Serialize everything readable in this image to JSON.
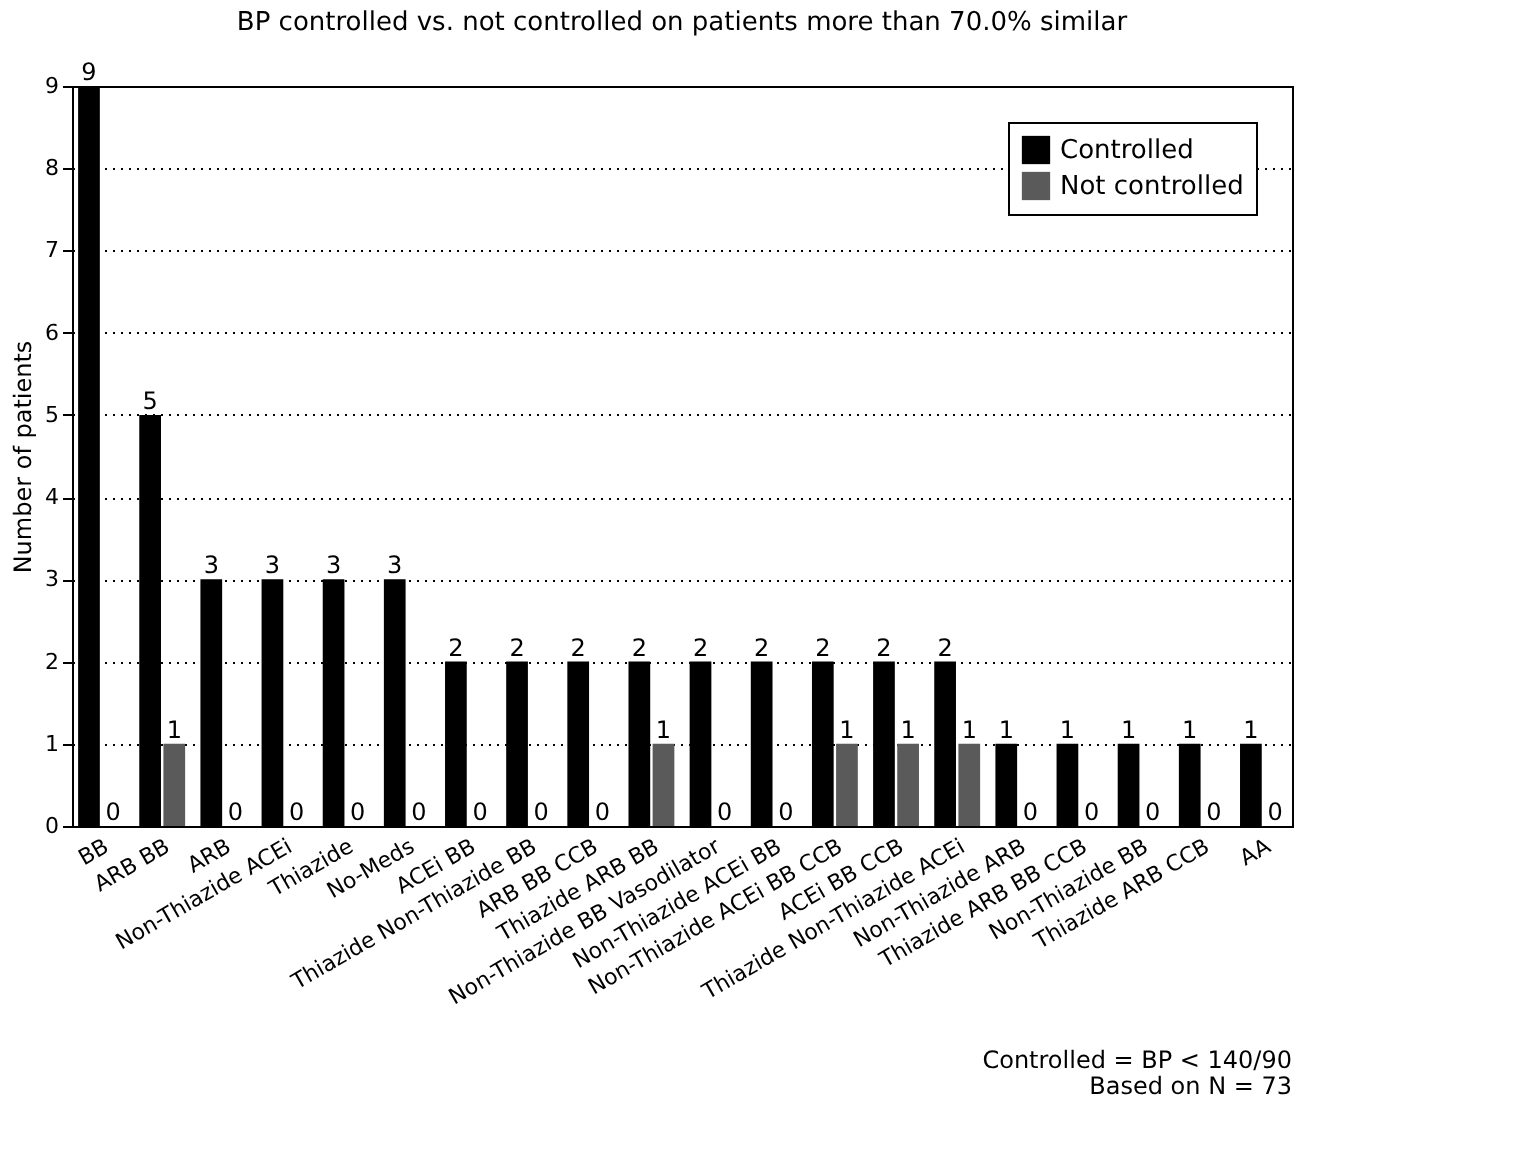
{
  "chart_data": {
    "type": "bar",
    "title": "BP controlled vs. not controlled on patients more than 70.0% similar",
    "ylabel": "Number of patients",
    "categories": [
      "BB",
      "ARB BB",
      "ARB",
      "Non-Thiazide ACEi",
      "Thiazide",
      "No-Meds",
      "ACEi BB",
      "Thiazide Non-Thiazide BB",
      "ARB BB CCB",
      "Thiazide ARB BB",
      "Non-Thiazide BB Vasodilator",
      "Non-Thiazide ACEi BB",
      "Non-Thiazide ACEi BB CCB",
      "ACEi BB CCB",
      "Thiazide Non-Thiazide ACEi",
      "Non-Thiazide ARB",
      "Thiazide ARB BB CCB",
      "Non-Thiazide BB",
      "Thiazide ARB CCB",
      "AA"
    ],
    "series": [
      {
        "name": "Controlled",
        "color": "#000000",
        "values": [
          9,
          5,
          3,
          3,
          3,
          3,
          2,
          2,
          2,
          2,
          2,
          2,
          2,
          2,
          2,
          1,
          1,
          1,
          1,
          1
        ]
      },
      {
        "name": "Not controlled",
        "color": "#5a5a5a",
        "values": [
          0,
          1,
          0,
          0,
          0,
          0,
          0,
          0,
          0,
          1,
          0,
          0,
          1,
          1,
          1,
          0,
          0,
          0,
          0,
          0
        ]
      }
    ],
    "ylim": [
      0,
      9
    ],
    "yticks": [
      0,
      1,
      2,
      3,
      4,
      5,
      6,
      7,
      8,
      9
    ],
    "grid": "y",
    "legend": "top right",
    "data_labels": true,
    "annotations": [
      "Controlled = BP < 140/90",
      "Based on N = 73"
    ]
  }
}
